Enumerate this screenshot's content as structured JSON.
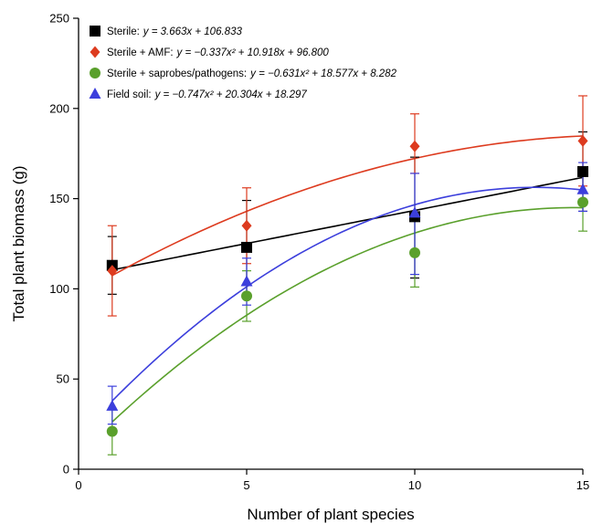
{
  "chart_data": {
    "type": "scatter",
    "xlabel": "Number of plant species",
    "ylabel": "Total plant biomass (g)",
    "xlim": [
      0,
      15
    ],
    "ylim": [
      0,
      250
    ],
    "x_ticks": [
      "0",
      "5",
      "10",
      "15"
    ],
    "y_ticks": [
      "0",
      "50",
      "100",
      "150",
      "200",
      "250"
    ],
    "grid": false,
    "legend_position": "top-left",
    "series": [
      {
        "name": "Sterile:",
        "equation": "y = 3.663x + 106.833",
        "marker": "square",
        "color": "#000000",
        "fit": {
          "a": 0,
          "b": 3.663,
          "c": 106.833
        },
        "x": [
          1,
          5,
          10,
          15
        ],
        "y": [
          113,
          123,
          140,
          165
        ],
        "err_upper": [
          129,
          149,
          173,
          187
        ],
        "err_lower": [
          97,
          97,
          106,
          143
        ]
      },
      {
        "name": "Sterile + AMF:",
        "equation": "y = −0.337x² + 10.918x + 96.800",
        "marker": "diamond",
        "color": "#dd3b1f",
        "fit": {
          "a": -0.337,
          "b": 10.918,
          "c": 96.8
        },
        "x": [
          1,
          5,
          10,
          15
        ],
        "y": [
          110,
          135,
          179,
          182
        ],
        "err_upper": [
          135,
          156,
          197,
          207
        ],
        "err_lower": [
          85,
          114,
          164,
          157
        ]
      },
      {
        "name": "Sterile + saprobes/pathogens:",
        "equation": "y = −0.631x² + 18.577x + 8.282",
        "marker": "circle",
        "color": "#5aa02c",
        "fit": {
          "a": -0.631,
          "b": 18.577,
          "c": 8.282
        },
        "x": [
          1,
          5,
          10,
          15
        ],
        "y": [
          21,
          96,
          120,
          148
        ],
        "err_upper": [
          33,
          110,
          138,
          163
        ],
        "err_lower": [
          8,
          82,
          101,
          132
        ]
      },
      {
        "name": "Field soil:",
        "equation": "y = −0.747x² + 20.304x + 18.297",
        "marker": "triangle",
        "color": "#3c3fdc",
        "fit": {
          "a": -0.747,
          "b": 20.304,
          "c": 18.297
        },
        "x": [
          1,
          5,
          10,
          15
        ],
        "y": [
          35,
          104,
          142,
          155
        ],
        "err_upper": [
          46,
          117,
          164,
          170
        ],
        "err_lower": [
          25,
          91,
          108,
          143
        ]
      }
    ]
  }
}
